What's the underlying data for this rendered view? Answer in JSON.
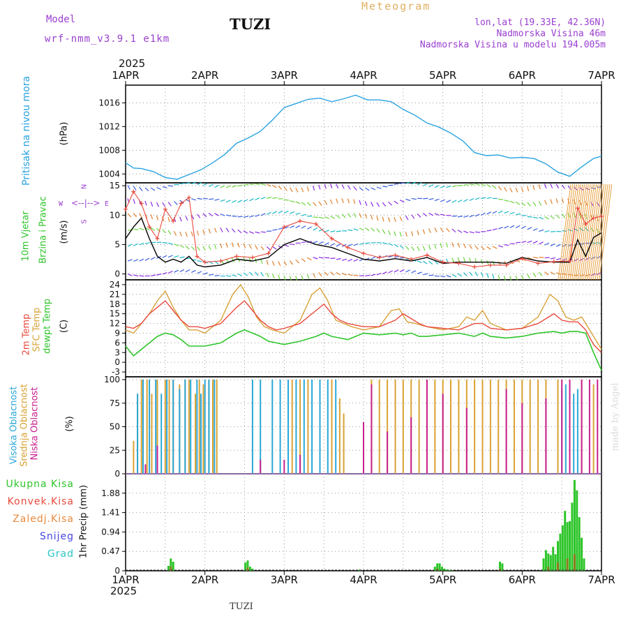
{
  "header": {
    "model_label": "Model",
    "model_value": "wrf-nmm_v3.9.1 e1km",
    "station": "TUZI",
    "meteogram_label": "Meteogram",
    "lonlat": "lon,lat (19.33E, 42.36N)",
    "elevation": "Nadmorska Visina 46m",
    "model_elevation": "Nadmorska Visina u modelu 194.005m",
    "year_top": "2025",
    "year_bottom": "2025",
    "footer_station": "TUZI",
    "watermark": "made by Angel"
  },
  "colors": {
    "pressure": "#29a3e0",
    "temp2m": "#e8493c",
    "sfc": "#d8a23a",
    "dewpt": "#2ec52a",
    "high_cloud": "#2aa7d6",
    "mid_cloud": "#d9a233",
    "low_cloud": "#c8208f",
    "total_precip": "#2ec52a",
    "conv_precip": "#e8493c",
    "frontal_precip": "#e8893c",
    "snow": "#4646e0",
    "hail": "#2ac5c5",
    "wind_speed": "#000000",
    "gust": "#e8493c",
    "axis_labels_purple": "#9a3fd0"
  },
  "panels": {
    "pressure": {
      "label_a": "Pritisak na nivou mora",
      "unit": "(hPa)"
    },
    "wind": {
      "label_a": "10m Vjetar",
      "label_b": "Brzina i Pravac",
      "unit": "(m/s)",
      "compass": {
        "n": "N",
        "s": "S",
        "e": "E",
        "w": "W"
      }
    },
    "temp": {
      "label_a": "2m Temp",
      "label_b": "SFC Temp",
      "label_c": "dewpt Temp",
      "unit": "(C)"
    },
    "cloud": {
      "label_a": "Visoka Oblacnost",
      "label_b": "Srednja Oblacnost",
      "label_c": "Niska Oblacnost",
      "unit": "(%)"
    },
    "precip": {
      "legend": [
        "Ukupna Kisa",
        "Konvek.Kisa",
        "Zaledj.Kisa",
        "Snijeg",
        "Grad"
      ],
      "unit": "1hr Precip (mm)"
    }
  },
  "chart_data": [
    {
      "type": "line",
      "panel": "pressure",
      "x_unit": "days since 1APR 00UTC",
      "xticks": [
        "1APR",
        "2APR",
        "3APR",
        "4APR",
        "5APR",
        "6APR",
        "7APR"
      ],
      "xlim": [
        0,
        6
      ],
      "ylim": [
        1002.5,
        1019
      ],
      "yticks": [
        1004,
        1008,
        1012,
        1016
      ],
      "grid": true,
      "series": [
        {
          "name": "Pritisak na nivou mora",
          "x": [
            0,
            0.1,
            0.2,
            0.35,
            0.5,
            0.65,
            0.8,
            0.95,
            1.1,
            1.25,
            1.4,
            1.55,
            1.7,
            1.85,
            2.0,
            2.15,
            2.3,
            2.45,
            2.6,
            2.75,
            2.9,
            3.05,
            3.2,
            3.35,
            3.5,
            3.65,
            3.8,
            3.95,
            4.1,
            4.25,
            4.4,
            4.55,
            4.7,
            4.85,
            5.0,
            5.15,
            5.3,
            5.45,
            5.6,
            5.75,
            5.9,
            6.0
          ],
          "y": [
            1005.9,
            1005.0,
            1004.9,
            1004.4,
            1003.4,
            1003.1,
            1003.9,
            1004.7,
            1005.9,
            1007.3,
            1009.2,
            1010.1,
            1011.2,
            1013.1,
            1015.2,
            1015.9,
            1016.6,
            1016.8,
            1016.2,
            1016.7,
            1017.3,
            1016.5,
            1016.5,
            1016.2,
            1014.9,
            1013.9,
            1012.6,
            1011.9,
            1010.9,
            1009.6,
            1007.6,
            1007.1,
            1007.2,
            1006.7,
            1006.8,
            1006.6,
            1005.7,
            1004.3,
            1003.6,
            1005.2,
            1006.6,
            1007.0
          ]
        }
      ]
    },
    {
      "type": "line",
      "panel": "wind",
      "x_unit": "days since 1APR 00UTC",
      "xlim": [
        0,
        6
      ],
      "ylim": [
        -1,
        15.5
      ],
      "yticks": [
        0,
        5,
        10,
        15
      ],
      "grid": true,
      "series": [
        {
          "name": "speed",
          "x": [
            0,
            0.1,
            0.2,
            0.3,
            0.4,
            0.5,
            0.6,
            0.7,
            0.8,
            0.9,
            1.0,
            1.2,
            1.4,
            1.6,
            1.8,
            2.0,
            2.2,
            2.4,
            2.6,
            2.8,
            3.0,
            3.2,
            3.4,
            3.6,
            3.8,
            4.0,
            4.2,
            4.4,
            4.6,
            4.8,
            5.0,
            5.2,
            5.4,
            5.6,
            5.7,
            5.8,
            5.9,
            6.0
          ],
          "y": [
            6,
            8,
            9.5,
            6,
            3,
            2,
            2.5,
            2,
            3,
            1.5,
            1.2,
            1.5,
            2.5,
            2.2,
            2.8,
            5,
            6,
            5,
            4.5,
            3.5,
            2.5,
            2.2,
            2.6,
            2.2,
            2.8,
            1.8,
            2,
            2,
            2,
            1.8,
            2.8,
            2.2,
            2,
            2,
            5.8,
            3,
            6.2,
            7
          ]
        },
        {
          "name": "gust",
          "x": [
            0,
            0.1,
            0.2,
            0.3,
            0.4,
            0.5,
            0.6,
            0.7,
            0.8,
            0.9,
            1.0,
            1.2,
            1.4,
            1.6,
            1.8,
            2.0,
            2.2,
            2.4,
            2.6,
            2.8,
            3.0,
            3.2,
            3.4,
            3.6,
            3.8,
            4.0,
            4.2,
            4.4,
            4.6,
            4.8,
            5.0,
            5.2,
            5.4,
            5.6,
            5.7,
            5.8,
            5.9,
            6.0
          ],
          "y": [
            11,
            14,
            12,
            8,
            6,
            11,
            9,
            12,
            13,
            3,
            2,
            2.2,
            3,
            2.8,
            3.5,
            8,
            9,
            8.5,
            6,
            4.5,
            3.5,
            2.8,
            3.2,
            2.5,
            3.2,
            2,
            1.8,
            1.2,
            1.5,
            1.5,
            2.6,
            1.8,
            2.1,
            2.2,
            11.2,
            8.5,
            9.5,
            9.8
          ]
        }
      ]
    },
    {
      "type": "line",
      "panel": "temperature",
      "x_unit": "days since 1APR 00UTC",
      "xlim": [
        0,
        6
      ],
      "ylim": [
        -4.5,
        25.5
      ],
      "yticks": [
        -3,
        0,
        3,
        6,
        9,
        12,
        15,
        18,
        21,
        24
      ],
      "grid": true,
      "series": [
        {
          "name": "2m Temp",
          "x": [
            0,
            0.1,
            0.2,
            0.3,
            0.4,
            0.5,
            0.6,
            0.7,
            0.8,
            0.9,
            1.0,
            1.2,
            1.4,
            1.5,
            1.6,
            1.7,
            1.8,
            1.9,
            2.0,
            2.2,
            2.4,
            2.5,
            2.6,
            2.7,
            2.8,
            2.9,
            3.0,
            3.2,
            3.4,
            3.5,
            3.6,
            3.7,
            3.8,
            4.0,
            4.2,
            4.4,
            4.5,
            4.6,
            4.8,
            5.0,
            5.2,
            5.4,
            5.5,
            5.6,
            5.7,
            5.8,
            5.9,
            6.0
          ],
          "y": [
            11,
            10.5,
            12,
            15,
            17,
            19,
            16,
            13,
            11,
            11,
            10.5,
            12,
            17,
            19,
            16,
            13,
            11,
            10,
            10.5,
            12,
            16,
            18,
            15,
            13,
            12,
            11.5,
            11,
            11,
            13,
            15,
            13.5,
            12,
            11,
            10.5,
            10,
            12,
            12,
            10.5,
            10,
            10.5,
            12,
            15,
            13,
            12.5,
            12.5,
            10,
            5.5,
            3
          ]
        },
        {
          "name": "SFC Temp",
          "x": [
            0,
            0.1,
            0.2,
            0.3,
            0.4,
            0.5,
            0.6,
            0.7,
            0.8,
            0.9,
            1.0,
            1.2,
            1.35,
            1.45,
            1.55,
            1.65,
            1.75,
            1.85,
            2.0,
            2.2,
            2.35,
            2.45,
            2.55,
            2.65,
            2.75,
            2.85,
            3.0,
            3.2,
            3.35,
            3.45,
            3.55,
            3.65,
            3.8,
            4.0,
            4.2,
            4.3,
            4.4,
            4.5,
            4.6,
            4.8,
            5.0,
            5.2,
            5.35,
            5.45,
            5.55,
            5.65,
            5.75,
            5.85,
            5.95,
            6.0
          ],
          "y": [
            10,
            9,
            12,
            15,
            19,
            22,
            17,
            13,
            10,
            10,
            9,
            13,
            21,
            24,
            20,
            14,
            11,
            10,
            9,
            13,
            21,
            23,
            19,
            13,
            12,
            11,
            10,
            11,
            16,
            16.5,
            12.5,
            12,
            11,
            10,
            11,
            14,
            13,
            16,
            12,
            10,
            10.5,
            14,
            21,
            19,
            14,
            13,
            14,
            10,
            6,
            4
          ]
        },
        {
          "name": "dewpt Temp",
          "x": [
            0,
            0.1,
            0.2,
            0.3,
            0.4,
            0.5,
            0.6,
            0.7,
            0.8,
            0.9,
            1.0,
            1.2,
            1.4,
            1.5,
            1.6,
            1.7,
            1.8,
            1.9,
            2.0,
            2.2,
            2.4,
            2.5,
            2.6,
            2.7,
            2.8,
            2.9,
            3.0,
            3.2,
            3.4,
            3.5,
            3.6,
            3.7,
            3.8,
            4.0,
            4.2,
            4.4,
            4.5,
            4.6,
            4.8,
            5.0,
            5.2,
            5.4,
            5.5,
            5.6,
            5.7,
            5.8,
            5.9,
            6.0
          ],
          "y": [
            5,
            2,
            4,
            6,
            8,
            9,
            8.5,
            7,
            5,
            5,
            5,
            6,
            9,
            10,
            9,
            8,
            6.5,
            6,
            5.5,
            6.5,
            8,
            9,
            8,
            7.5,
            7,
            8,
            9,
            8.5,
            9,
            8.5,
            9,
            8,
            8,
            8.5,
            9,
            8,
            9,
            8,
            7.5,
            8,
            9,
            9.5,
            9,
            9.5,
            9.5,
            9,
            3,
            -2.5
          ]
        }
      ]
    },
    {
      "type": "bar",
      "panel": "cloud",
      "x_unit": "days since 1APR 00UTC",
      "xlim": [
        0,
        6
      ],
      "ylim": [
        0,
        103
      ],
      "yticks": [
        0,
        25,
        50,
        75,
        100
      ],
      "grid": true,
      "series": [
        {
          "name": "Srednja Oblacnost",
          "x": [
            0.1,
            0.15,
            0.2,
            0.27,
            0.33,
            0.4,
            0.5,
            0.55,
            0.6,
            0.68,
            0.75,
            0.8,
            0.88,
            0.93,
            0.98,
            1.05,
            1.1,
            1.15,
            2.1,
            2.2,
            2.3,
            2.45,
            2.6,
            2.7,
            2.75,
            3.1,
            3.2,
            3.3,
            3.4,
            3.5,
            3.6,
            3.7,
            3.8,
            3.9,
            4.0,
            4.1,
            4.2,
            4.3,
            4.4,
            4.5,
            4.6,
            4.7,
            4.8,
            4.9,
            5.0,
            5.1,
            5.2,
            5.3,
            5.45,
            5.6,
            5.75,
            5.9
          ],
          "y": [
            35,
            85,
            100,
            100,
            85,
            100,
            100,
            100,
            100,
            95,
            100,
            100,
            85,
            100,
            95,
            100,
            100,
            100,
            100,
            100,
            100,
            100,
            100,
            80,
            64,
            100,
            100,
            100,
            100,
            100,
            100,
            100,
            100,
            100,
            100,
            100,
            100,
            100,
            100,
            100,
            100,
            100,
            100,
            100,
            100,
            100,
            100,
            100,
            100,
            100,
            100,
            95
          ]
        },
        {
          "name": "Visoka Oblacnost",
          "x": [
            0.15,
            0.22,
            0.3,
            0.38,
            0.45,
            0.52,
            0.6,
            0.68,
            0.75,
            0.82,
            0.9,
            0.95,
            1.0,
            1.05,
            1.12,
            1.6,
            1.7,
            1.85,
            1.95,
            2.05,
            2.15,
            2.25,
            2.35,
            2.45,
            2.55,
            2.65,
            5.5,
            5.55,
            5.6,
            5.65,
            5.7
          ],
          "y": [
            85,
            100,
            100,
            100,
            85,
            100,
            100,
            90,
            100,
            100,
            100,
            85,
            100,
            100,
            100,
            100,
            100,
            100,
            100,
            100,
            100,
            100,
            100,
            100,
            100,
            100,
            90,
            95,
            100,
            85,
            90
          ]
        },
        {
          "name": "Niska Oblacnost",
          "x": [
            0.25,
            0.4,
            1.7,
            2.0,
            2.2,
            3.0,
            3.1,
            3.3,
            3.6,
            3.8,
            4.0,
            4.3,
            4.8,
            5.0,
            5.3,
            5.5,
            5.6,
            5.75,
            5.85,
            5.95
          ],
          "y": [
            10,
            30,
            15,
            15,
            20,
            55,
            95,
            45,
            60,
            100,
            85,
            70,
            90,
            75,
            80,
            100,
            100,
            100,
            100,
            100
          ]
        }
      ]
    },
    {
      "type": "bar",
      "panel": "precipitation",
      "x_unit": "days since 1APR 00UTC",
      "xlim": [
        0,
        6
      ],
      "ylim": [
        0,
        2.35
      ],
      "yticks": [
        0,
        0.47,
        0.94,
        1.41,
        1.88
      ],
      "grid": true,
      "series": [
        {
          "name": "Ukupna Kisa",
          "x": [
            0.54,
            0.57,
            0.6,
            1.51,
            1.54,
            1.57,
            1.6,
            2.95,
            3.9,
            3.93,
            3.96,
            3.99,
            4.02,
            4.05,
            4.08,
            4.11,
            4.72,
            4.75,
            5.27,
            5.3,
            5.33,
            5.36,
            5.39,
            5.42,
            5.45,
            5.48,
            5.51,
            5.54,
            5.57,
            5.6,
            5.63,
            5.66,
            5.69,
            5.72,
            5.75,
            5.78
          ],
          "y": [
            0.12,
            0.3,
            0.22,
            0.2,
            0.25,
            0.1,
            0.05,
            0.03,
            0.1,
            0.18,
            0.18,
            0.1,
            0.05,
            0.03,
            0.02,
            0.02,
            0.22,
            0.18,
            0.3,
            0.5,
            0.42,
            0.38,
            0.58,
            0.4,
            0.72,
            0.9,
            1.1,
            1.45,
            1.18,
            1.2,
            1.65,
            2.2,
            1.95,
            1.3,
            0.8,
            0.3
          ]
        },
        {
          "name": "Konvek.Kisa",
          "x": [
            0.57,
            1.54,
            3.93,
            4.72,
            5.33,
            5.45,
            5.57,
            5.66
          ],
          "y": [
            0.1,
            0.08,
            0.05,
            0.05,
            0.1,
            0.2,
            0.3,
            0.4
          ]
        }
      ]
    }
  ]
}
